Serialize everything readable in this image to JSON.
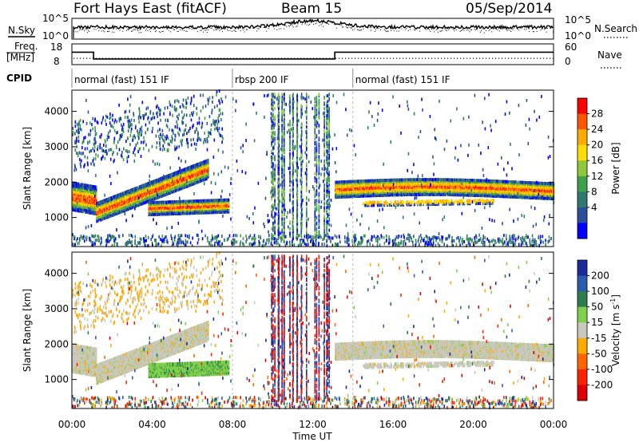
{
  "header": {
    "radar": "Fort Hays East (fitACF)",
    "beam": "Beam 15",
    "date": "05/Sep/2014"
  },
  "noise_panel": {
    "left_label": "N.Sky",
    "right_label": "N.Search",
    "left_ticks": [
      "10^5",
      "10^0"
    ],
    "right_ticks": [
      "10^5",
      "10^0"
    ]
  },
  "freq_panel": {
    "left_label_line1": "Freq.",
    "left_label_line2": "[MHz]",
    "right_label": "Nave",
    "left_ticks": [
      "18",
      "8"
    ],
    "right_ticks": [
      "60",
      "0"
    ],
    "freq_segments": [
      {
        "start_h": 0.0,
        "end_h": 1.08,
        "value": 14
      },
      {
        "start_h": 1.08,
        "end_h": 13.1,
        "value": 10.7
      },
      {
        "start_h": 13.1,
        "end_h": 24.0,
        "value": 14
      }
    ]
  },
  "cpid": {
    "label": "CPID",
    "segments": [
      {
        "start_h": 0.0,
        "end_h": 8.0,
        "text": "normal (fast) 151 IF"
      },
      {
        "start_h": 8.0,
        "end_h": 14.0,
        "text": "rbsp 200 IF"
      },
      {
        "start_h": 14.0,
        "end_h": 24.0,
        "text": "normal (fast) 151 IF"
      }
    ]
  },
  "chart_data": [
    {
      "type": "heatmap",
      "parameter": "Power",
      "ylabel": "Slant Range [km]",
      "colorbar_label": "Power [dB]",
      "ylim": [
        180,
        4600
      ],
      "yticks": [
        1000,
        2000,
        3000,
        4000
      ],
      "colorbar_ticks": [
        "28",
        "24",
        "20",
        "16",
        "12",
        "8",
        "4"
      ],
      "colorbar_colors": [
        "#ff0000",
        "#ff5500",
        "#ffaa00",
        "#ffdd00",
        "#8fc83a",
        "#3fa04a",
        "#2f7a6e",
        "#2c4f9a",
        "#0000ff"
      ]
    },
    {
      "type": "heatmap",
      "parameter": "Velocity",
      "ylabel": "Slant Range [km]",
      "colorbar_label": "Velocity [m s^-1]",
      "ylim": [
        180,
        4600
      ],
      "yticks": [
        1000,
        2000,
        3000,
        4000
      ],
      "colorbar_ticks": [
        "200",
        "100",
        "50",
        "15",
        "-15",
        "-50",
        "-100",
        "-200"
      ],
      "colorbar_colors": [
        "#1a2a9a",
        "#2a5bb0",
        "#2e7d4f",
        "#7fd04a",
        "#c8c8bc",
        "#ffaa00",
        "#ff6600",
        "#ff2200",
        "#dd0000"
      ]
    }
  ],
  "x_axis": {
    "label": "Time UT",
    "ticks": [
      "00:00",
      "04:00",
      "08:00",
      "12:00",
      "16:00",
      "20:00",
      "00:00"
    ],
    "range_h": [
      0,
      24
    ]
  }
}
